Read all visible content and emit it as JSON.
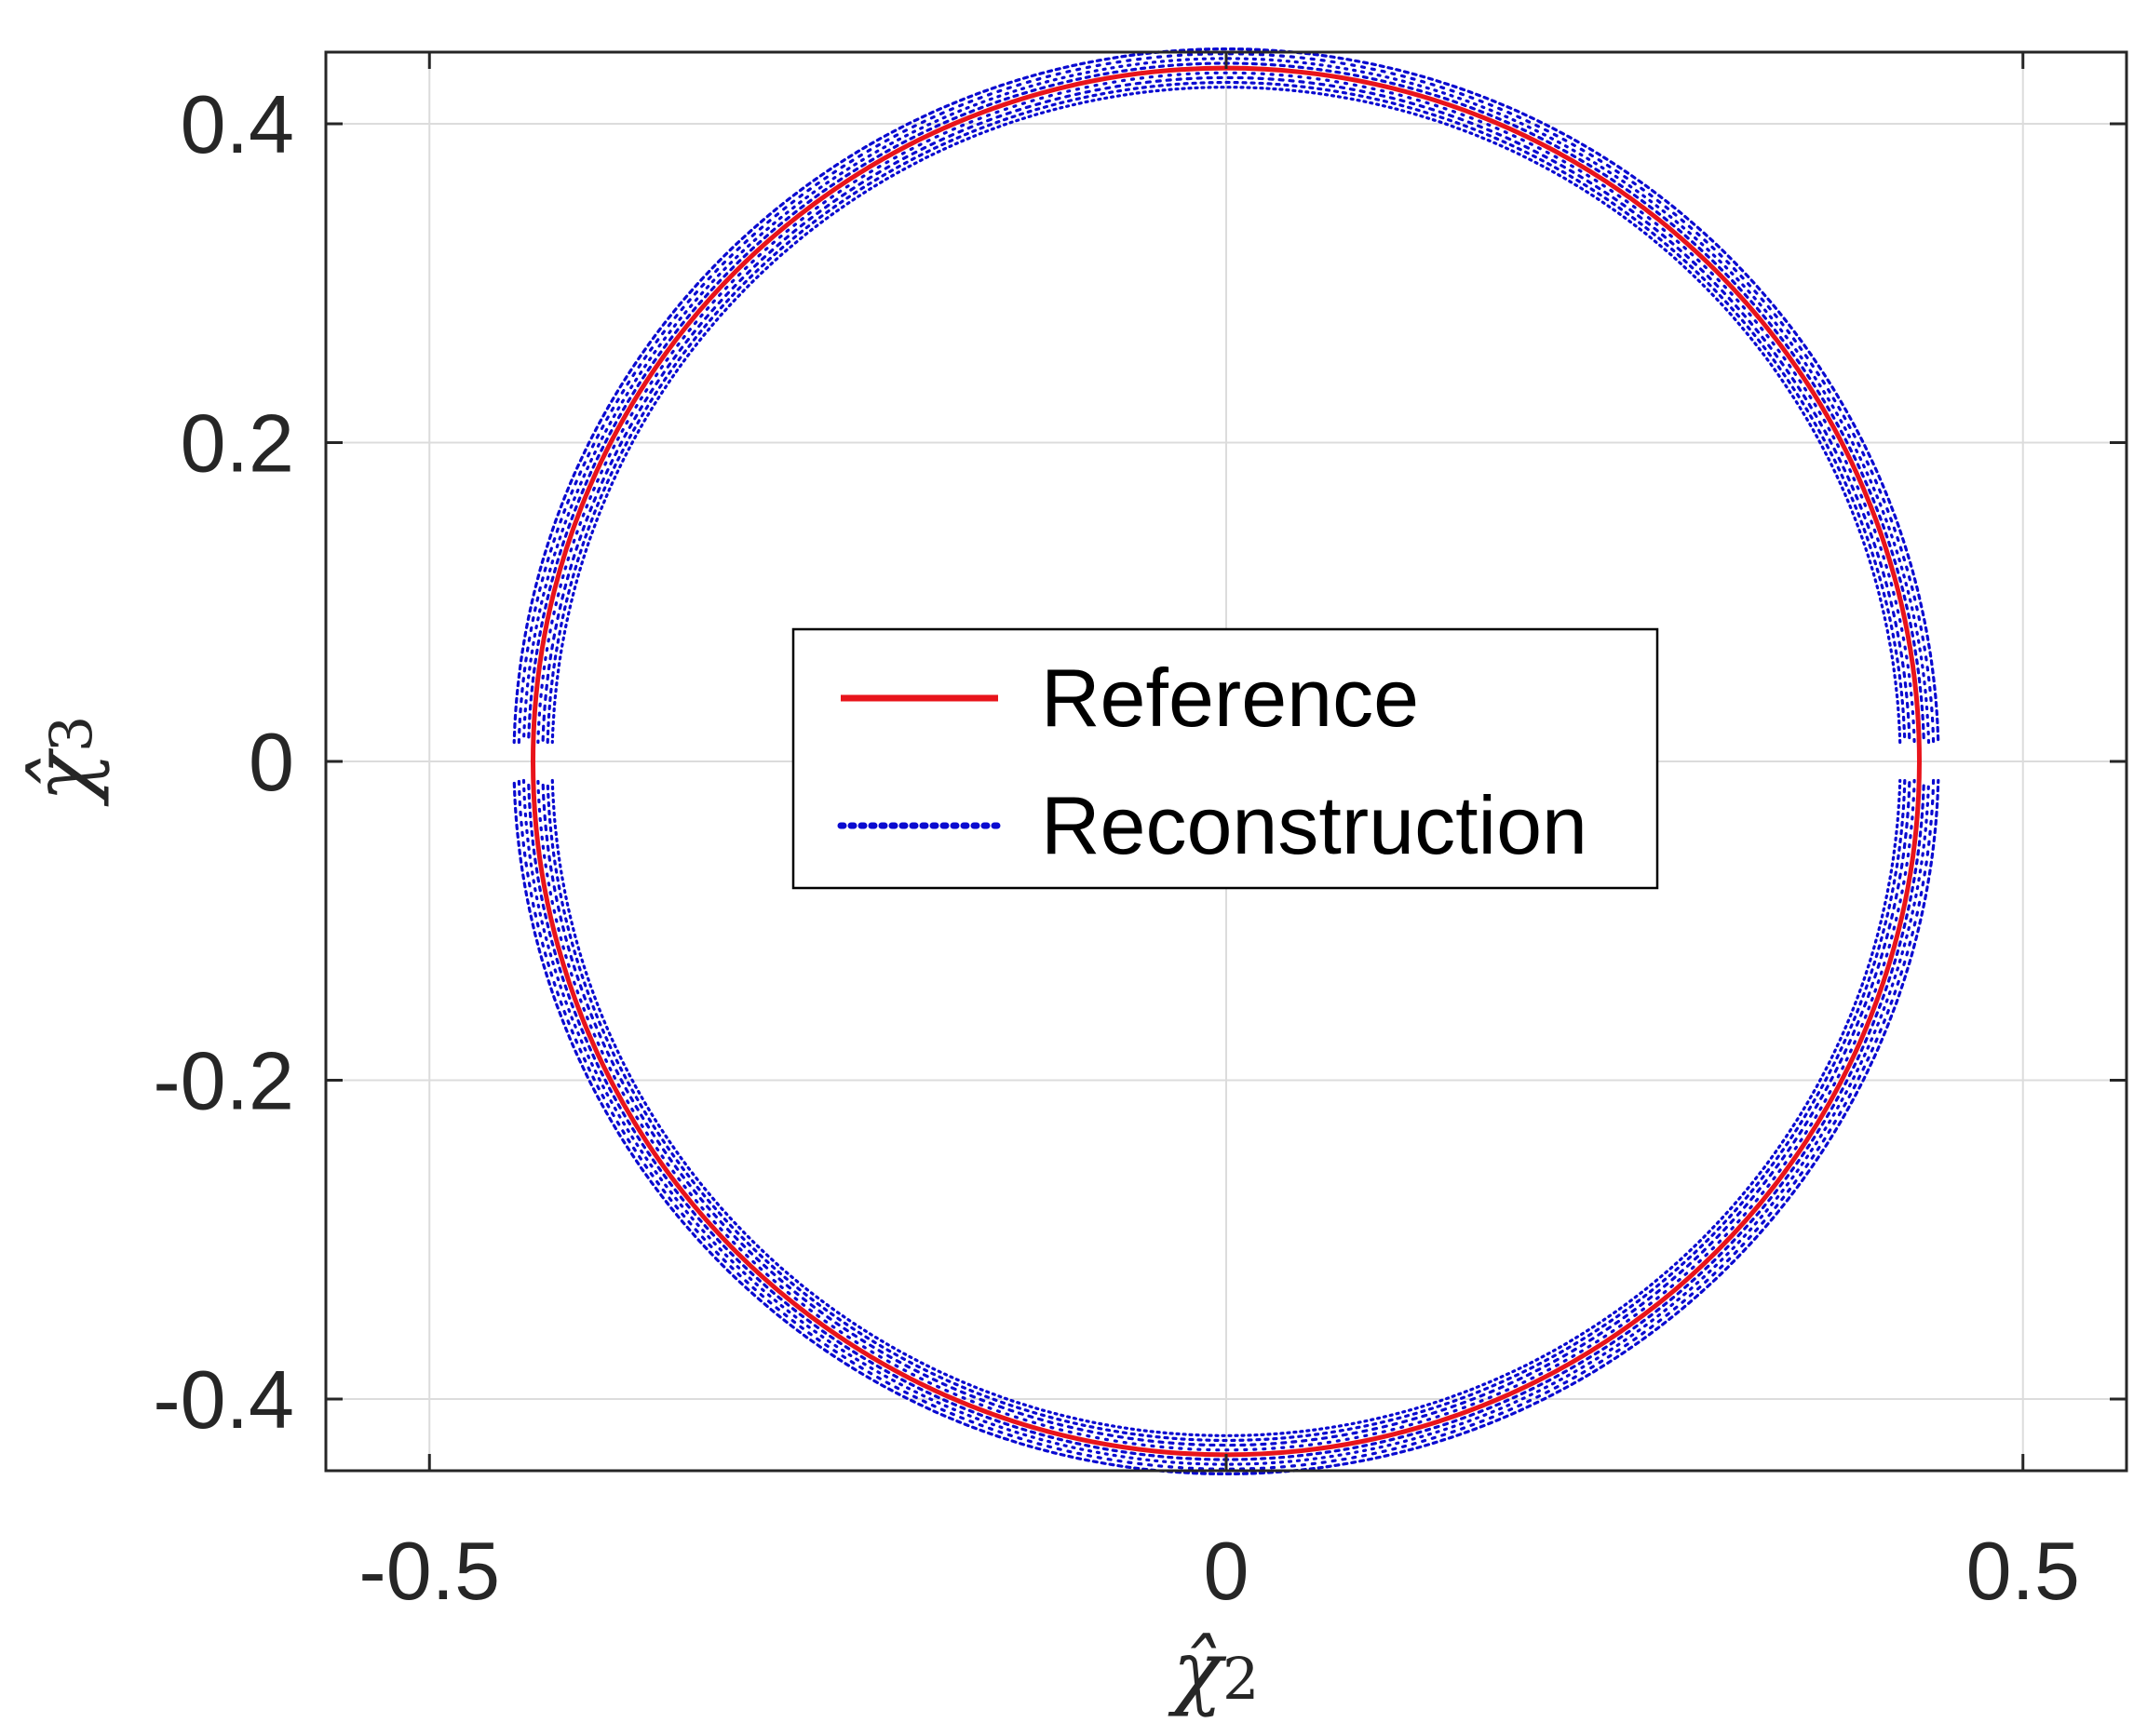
{
  "chart_data": {
    "type": "line",
    "title": "",
    "xlabel": "χ̂2",
    "ylabel": "χ̂3",
    "xlabel_main": "χ̂",
    "xlabel_sub": "2",
    "ylabel_main": "χ̂",
    "ylabel_sub": "3",
    "xlim": [
      -0.565,
      0.565
    ],
    "ylim": [
      -0.445,
      0.445
    ],
    "x_ticks": [
      -0.5,
      0,
      0.5
    ],
    "x_tick_labels": [
      "-0.5",
      "0",
      "0.5"
    ],
    "y_ticks": [
      -0.4,
      -0.2,
      0,
      0.2,
      0.4
    ],
    "y_tick_labels": [
      "-0.4",
      "-0.2",
      "0",
      "0.2",
      "0.4"
    ],
    "grid": true,
    "legend_position": "center",
    "series": [
      {
        "name": "Reference",
        "style": "solid",
        "color": "#e8141b",
        "shape": "circle",
        "center": [
          0,
          0
        ],
        "radius": 0.435
      },
      {
        "name": "Reconstruction",
        "style": "dotted",
        "color": "#0a0ad0",
        "shape": "circle band",
        "center": [
          0,
          0
        ],
        "radius_min": 0.423,
        "radius_max": 0.447,
        "gap_near_y": 0.012
      }
    ]
  }
}
